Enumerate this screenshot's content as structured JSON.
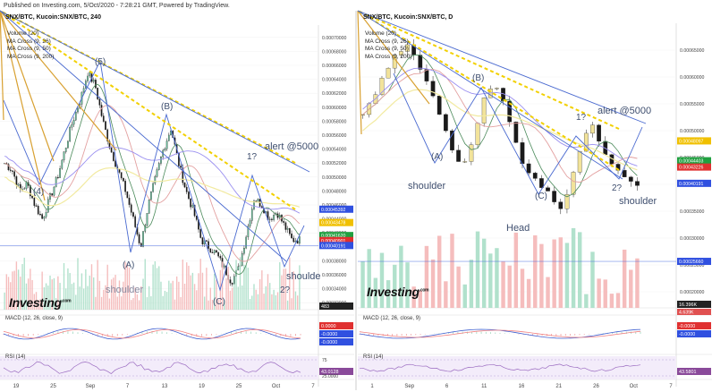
{
  "header": {
    "text": "Published on Investing.com, 5/Oct/2020 - 7:28:21 GMT, Powered by TradingView."
  },
  "watermark": "Investing",
  "watermark_suffix": ".com",
  "colors": {
    "bull": "#6cc5a0",
    "bear": "#1a1a1a",
    "ma_fast": "#4a8a5a",
    "ma_mid": "#e3a0a0",
    "ma_slow": "#9a8ff0",
    "ma_yellow": "#f2eaa0",
    "wave": "#4a6ad0",
    "trend": "#d8a030",
    "macd": "#4060d0",
    "signal": "#f08080",
    "rsi": "#9a6ac0"
  },
  "chart_data": [
    {
      "type": "candlestick",
      "title": "SNX/BTC, Kucoin:SNX/BTC, 240",
      "legend": [
        "Volume (20)",
        "MA Cross (9, 26)",
        "MA Cross (9, 50)",
        "MA Cross (9, 200)"
      ],
      "y_ticks": [
        "0.00070000",
        "0.00068000",
        "0.00066000",
        "0.00064000",
        "0.00062000",
        "0.00060000",
        "0.00058000",
        "0.00056000",
        "0.00054000",
        "0.00052000",
        "0.00050000",
        "0.00048000",
        "0.00046000",
        "0.00044000",
        "0.00042000",
        "0.00040000",
        "0.00038000",
        "0.00036000",
        "0.00034000",
        "0.00032000"
      ],
      "ylim": [
        0.00031,
        0.00071
      ],
      "x_ticks": [
        "19",
        "25",
        "Sep",
        "7",
        "13",
        "19",
        "25",
        "Oct",
        "7"
      ],
      "close_path": [
        0.00052,
        0.00051,
        0.00048,
        0.00049,
        0.00046,
        0.00044,
        0.00047,
        0.0005,
        0.00054,
        0.00058,
        0.00061,
        0.00065,
        0.00063,
        0.00058,
        0.00054,
        0.00051,
        0.00048,
        0.00044,
        0.0004,
        0.00046,
        0.0005,
        0.00054,
        0.00057,
        0.00052,
        0.00048,
        0.00045,
        0.00041,
        0.0004,
        0.00039,
        0.00037,
        0.00035,
        0.00037,
        0.00042,
        0.00047,
        0.00046,
        0.00044,
        0.00045,
        0.00043,
        0.00041,
        0.00041
      ],
      "price_labels": [
        {
          "value": "0.00045392",
          "color": "#3050e0",
          "price": 0.0004539
        },
        {
          "value": "0.00043478",
          "color": "#f0c000",
          "price": 0.0004348
        },
        {
          "value": "0.00041620",
          "color": "#20a040",
          "price": 0.0004162
        },
        {
          "value": "0.00040901",
          "color": "#e03030",
          "price": 0.000409
        },
        {
          "value": "0.00040191",
          "color": "#3050e0",
          "price": 0.0004019
        }
      ],
      "volume_label": "483",
      "annotations": {
        "wave_labels": [
          "(5)",
          "(B)",
          "(A)",
          "(C)",
          "(4)",
          "1?",
          "2?"
        ],
        "alert": "alert @5000",
        "shoulder_left": "shoulder",
        "shoulder_right": "shoulde"
      },
      "macd": {
        "label": "MACD (12, 26, close, 9)",
        "values": [
          "0.0000",
          "-0.0000",
          "-0.0000"
        ]
      },
      "rsi": {
        "label": "RSI (14)",
        "value": "43.0128",
        "ticks": [
          "75",
          "25.0000"
        ]
      }
    },
    {
      "type": "candlestick",
      "title": "SNX/BTC, Kucoin:SNX/BTC, D",
      "legend": [
        "Volume (20)",
        "MA Cross (9, 26)",
        "MA Cross (9, 50)",
        "MA Cross (9, 200)"
      ],
      "y_ticks": [
        "0.00065000",
        "0.00060000",
        "0.00055000",
        "0.00050000",
        "0.00045000",
        "0.00040000",
        "0.00035000",
        "0.00030000",
        "0.00025000",
        "0.00020000"
      ],
      "ylim": [
        0.00017,
        0.00069
      ],
      "x_ticks": [
        "1",
        "Sep",
        "6",
        "11",
        "16",
        "21",
        "26",
        "Oct",
        "7"
      ],
      "close_path": [
        0.00053,
        0.00056,
        0.00061,
        0.00064,
        0.00066,
        0.00063,
        0.00058,
        0.00053,
        0.00047,
        0.00043,
        0.00048,
        0.00056,
        0.00059,
        0.00054,
        0.00047,
        0.00042,
        0.0004,
        0.00039,
        0.00035,
        0.00041,
        0.00048,
        0.00051,
        0.00046,
        0.00043,
        0.00041,
        0.0004
      ],
      "price_labels": [
        {
          "value": "0.00048097",
          "color": "#f0c000",
          "price": 0.00048097
        },
        {
          "value": "0.00044403",
          "color": "#20a040",
          "price": 0.00044403
        },
        {
          "value": "0.00043226",
          "color": "#e03030",
          "price": 0.00043226
        },
        {
          "value": "0.00040191",
          "color": "#3050e0",
          "price": 0.00040191
        },
        {
          "value": "0.00025660",
          "color": "#3050e0",
          "price": 0.0002566
        }
      ],
      "volume_label": "16.396K",
      "volume_sub": "4.639K",
      "annotations": {
        "wave_labels": [
          "(A)",
          "(B)",
          "(C)",
          "1?",
          "2?"
        ],
        "alert": "alert @5000",
        "shoulder_left": "shoulder",
        "head": "Head",
        "shoulder_right": "shoulder"
      },
      "macd": {
        "label": "MACD (12, 26, close, 9)",
        "values": [
          "-0.0000",
          "-0.0000"
        ]
      },
      "rsi": {
        "label": "RSI (14)",
        "value": "43.5801"
      }
    }
  ]
}
